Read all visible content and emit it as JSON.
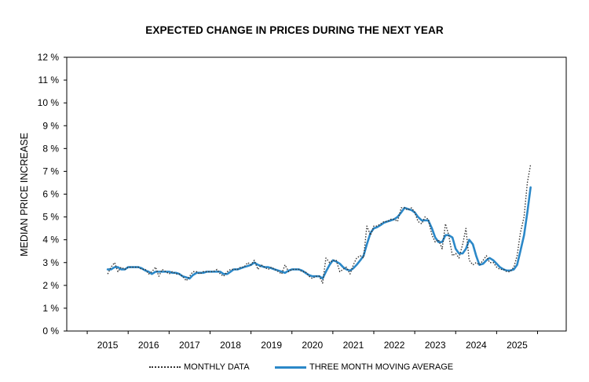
{
  "chart_data": {
    "type": "line",
    "title": "EXPECTED CHANGE IN PRICES DURING THE NEXT YEAR",
    "ylabel": "MEDIAN PRICE INCREASE",
    "xlabel": "",
    "ylim": [
      0,
      12
    ],
    "xlim": [
      2014.0,
      2026.2
    ],
    "y_ticks": [
      "0 %",
      "1 %",
      "2 %",
      "3 %",
      "4 %",
      "5 %",
      "6 %",
      "7 %",
      "8 %",
      "9 %",
      "10 %",
      "11 %",
      "12 %"
    ],
    "x_ticks": [
      "2015",
      "2016",
      "2017",
      "2018",
      "2019",
      "2020",
      "2021",
      "2022",
      "2023",
      "2024",
      "2025"
    ],
    "legend_position": "bottom",
    "grid": false,
    "series": [
      {
        "name": "MONTHLY DATA",
        "style": "dotted",
        "color": "#333333",
        "points": [
          [
            2015.0,
            2.5
          ],
          [
            2015.08,
            2.8
          ],
          [
            2015.17,
            3.0
          ],
          [
            2015.25,
            2.6
          ],
          [
            2015.33,
            2.8
          ],
          [
            2015.42,
            2.7
          ],
          [
            2015.5,
            2.8
          ],
          [
            2015.58,
            2.8
          ],
          [
            2015.67,
            2.8
          ],
          [
            2015.75,
            2.8
          ],
          [
            2015.83,
            2.7
          ],
          [
            2015.92,
            2.7
          ],
          [
            2016.0,
            2.5
          ],
          [
            2016.08,
            2.6
          ],
          [
            2016.17,
            2.8
          ],
          [
            2016.25,
            2.4
          ],
          [
            2016.33,
            2.7
          ],
          [
            2016.42,
            2.6
          ],
          [
            2016.5,
            2.5
          ],
          [
            2016.58,
            2.6
          ],
          [
            2016.67,
            2.5
          ],
          [
            2016.75,
            2.5
          ],
          [
            2016.83,
            2.4
          ],
          [
            2016.92,
            2.2
          ],
          [
            2017.0,
            2.4
          ],
          [
            2017.08,
            2.6
          ],
          [
            2017.17,
            2.6
          ],
          [
            2017.25,
            2.5
          ],
          [
            2017.33,
            2.6
          ],
          [
            2017.42,
            2.6
          ],
          [
            2017.5,
            2.6
          ],
          [
            2017.58,
            2.6
          ],
          [
            2017.67,
            2.7
          ],
          [
            2017.75,
            2.5
          ],
          [
            2017.83,
            2.4
          ],
          [
            2017.92,
            2.6
          ],
          [
            2018.0,
            2.7
          ],
          [
            2018.08,
            2.7
          ],
          [
            2018.17,
            2.7
          ],
          [
            2018.25,
            2.8
          ],
          [
            2018.33,
            2.8
          ],
          [
            2018.42,
            3.0
          ],
          [
            2018.5,
            2.9
          ],
          [
            2018.58,
            3.1
          ],
          [
            2018.67,
            2.7
          ],
          [
            2018.75,
            2.9
          ],
          [
            2018.83,
            2.8
          ],
          [
            2018.92,
            2.7
          ],
          [
            2019.0,
            2.8
          ],
          [
            2019.08,
            2.7
          ],
          [
            2019.17,
            2.6
          ],
          [
            2019.25,
            2.5
          ],
          [
            2019.33,
            2.9
          ],
          [
            2019.42,
            2.6
          ],
          [
            2019.5,
            2.7
          ],
          [
            2019.58,
            2.7
          ],
          [
            2019.67,
            2.7
          ],
          [
            2019.75,
            2.6
          ],
          [
            2019.83,
            2.6
          ],
          [
            2019.92,
            2.4
          ],
          [
            2020.0,
            2.3
          ],
          [
            2020.08,
            2.4
          ],
          [
            2020.17,
            2.4
          ],
          [
            2020.25,
            2.1
          ],
          [
            2020.33,
            3.2
          ],
          [
            2020.42,
            3.0
          ],
          [
            2020.5,
            3.1
          ],
          [
            2020.58,
            3.1
          ],
          [
            2020.67,
            2.6
          ],
          [
            2020.75,
            2.7
          ],
          [
            2020.83,
            2.8
          ],
          [
            2020.92,
            2.5
          ],
          [
            2021.0,
            2.9
          ],
          [
            2021.08,
            3.2
          ],
          [
            2021.17,
            3.3
          ],
          [
            2021.25,
            3.2
          ],
          [
            2021.33,
            4.6
          ],
          [
            2021.42,
            4.2
          ],
          [
            2021.5,
            4.6
          ],
          [
            2021.58,
            4.6
          ],
          [
            2021.67,
            4.7
          ],
          [
            2021.75,
            4.8
          ],
          [
            2021.83,
            4.8
          ],
          [
            2021.92,
            4.9
          ],
          [
            2022.0,
            4.9
          ],
          [
            2022.08,
            4.8
          ],
          [
            2022.17,
            5.4
          ],
          [
            2022.25,
            5.4
          ],
          [
            2022.33,
            5.3
          ],
          [
            2022.42,
            5.4
          ],
          [
            2022.5,
            5.2
          ],
          [
            2022.58,
            4.8
          ],
          [
            2022.67,
            4.7
          ],
          [
            2022.75,
            5.0
          ],
          [
            2022.83,
            4.9
          ],
          [
            2022.92,
            4.2
          ],
          [
            2023.0,
            3.9
          ],
          [
            2023.08,
            4.0
          ],
          [
            2023.17,
            3.6
          ],
          [
            2023.25,
            4.7
          ],
          [
            2023.33,
            4.2
          ],
          [
            2023.42,
            3.3
          ],
          [
            2023.5,
            3.4
          ],
          [
            2023.58,
            3.2
          ],
          [
            2023.67,
            3.8
          ],
          [
            2023.75,
            4.5
          ],
          [
            2023.83,
            3.1
          ],
          [
            2023.92,
            2.9
          ],
          [
            2024.0,
            3.0
          ],
          [
            2024.08,
            2.9
          ],
          [
            2024.17,
            3.1
          ],
          [
            2024.25,
            3.3
          ],
          [
            2024.33,
            3.0
          ],
          [
            2024.42,
            3.0
          ],
          [
            2024.5,
            2.8
          ],
          [
            2024.58,
            2.7
          ],
          [
            2024.67,
            2.7
          ],
          [
            2024.75,
            2.6
          ],
          [
            2024.83,
            2.6
          ],
          [
            2024.92,
            2.8
          ],
          [
            2025.0,
            3.3
          ],
          [
            2025.08,
            4.3
          ],
          [
            2025.17,
            5.0
          ],
          [
            2025.25,
            6.5
          ],
          [
            2025.33,
            7.3
          ]
        ]
      },
      {
        "name": "THREE MONTH MOVING AVERAGE",
        "style": "solid",
        "color": "#2b88c8",
        "points": [
          [
            2015.0,
            2.7
          ],
          [
            2015.08,
            2.7
          ],
          [
            2015.17,
            2.8
          ],
          [
            2015.25,
            2.8
          ],
          [
            2015.33,
            2.7
          ],
          [
            2015.42,
            2.7
          ],
          [
            2015.5,
            2.8
          ],
          [
            2015.58,
            2.8
          ],
          [
            2015.67,
            2.8
          ],
          [
            2015.75,
            2.8
          ],
          [
            2015.83,
            2.75
          ],
          [
            2015.92,
            2.65
          ],
          [
            2016.0,
            2.6
          ],
          [
            2016.08,
            2.5
          ],
          [
            2016.17,
            2.6
          ],
          [
            2016.25,
            2.6
          ],
          [
            2016.33,
            2.6
          ],
          [
            2016.42,
            2.6
          ],
          [
            2016.5,
            2.6
          ],
          [
            2016.58,
            2.55
          ],
          [
            2016.67,
            2.55
          ],
          [
            2016.75,
            2.5
          ],
          [
            2016.83,
            2.4
          ],
          [
            2016.92,
            2.35
          ],
          [
            2017.0,
            2.3
          ],
          [
            2017.08,
            2.45
          ],
          [
            2017.17,
            2.55
          ],
          [
            2017.25,
            2.55
          ],
          [
            2017.33,
            2.55
          ],
          [
            2017.42,
            2.6
          ],
          [
            2017.5,
            2.6
          ],
          [
            2017.58,
            2.6
          ],
          [
            2017.67,
            2.6
          ],
          [
            2017.75,
            2.6
          ],
          [
            2017.83,
            2.5
          ],
          [
            2017.92,
            2.5
          ],
          [
            2018.0,
            2.6
          ],
          [
            2018.08,
            2.7
          ],
          [
            2018.17,
            2.7
          ],
          [
            2018.25,
            2.75
          ],
          [
            2018.33,
            2.8
          ],
          [
            2018.42,
            2.85
          ],
          [
            2018.5,
            2.9
          ],
          [
            2018.58,
            3.0
          ],
          [
            2018.67,
            2.9
          ],
          [
            2018.75,
            2.85
          ],
          [
            2018.83,
            2.8
          ],
          [
            2018.92,
            2.8
          ],
          [
            2019.0,
            2.75
          ],
          [
            2019.08,
            2.7
          ],
          [
            2019.17,
            2.65
          ],
          [
            2019.25,
            2.6
          ],
          [
            2019.33,
            2.55
          ],
          [
            2019.42,
            2.65
          ],
          [
            2019.5,
            2.7
          ],
          [
            2019.58,
            2.7
          ],
          [
            2019.67,
            2.7
          ],
          [
            2019.75,
            2.65
          ],
          [
            2019.83,
            2.55
          ],
          [
            2019.92,
            2.45
          ],
          [
            2020.0,
            2.4
          ],
          [
            2020.08,
            2.4
          ],
          [
            2020.17,
            2.4
          ],
          [
            2020.25,
            2.3
          ],
          [
            2020.33,
            2.6
          ],
          [
            2020.42,
            2.9
          ],
          [
            2020.5,
            3.1
          ],
          [
            2020.58,
            3.05
          ],
          [
            2020.67,
            2.95
          ],
          [
            2020.75,
            2.8
          ],
          [
            2020.83,
            2.7
          ],
          [
            2020.92,
            2.65
          ],
          [
            2021.0,
            2.75
          ],
          [
            2021.08,
            2.9
          ],
          [
            2021.17,
            3.1
          ],
          [
            2021.25,
            3.3
          ],
          [
            2021.33,
            3.8
          ],
          [
            2021.42,
            4.3
          ],
          [
            2021.5,
            4.5
          ],
          [
            2021.58,
            4.55
          ],
          [
            2021.67,
            4.65
          ],
          [
            2021.75,
            4.75
          ],
          [
            2021.83,
            4.8
          ],
          [
            2021.92,
            4.85
          ],
          [
            2022.0,
            4.9
          ],
          [
            2022.08,
            5.0
          ],
          [
            2022.17,
            5.2
          ],
          [
            2022.25,
            5.4
          ],
          [
            2022.33,
            5.35
          ],
          [
            2022.42,
            5.3
          ],
          [
            2022.5,
            5.2
          ],
          [
            2022.58,
            5.0
          ],
          [
            2022.67,
            4.85
          ],
          [
            2022.75,
            4.85
          ],
          [
            2022.83,
            4.85
          ],
          [
            2022.92,
            4.5
          ],
          [
            2023.0,
            4.1
          ],
          [
            2023.08,
            3.9
          ],
          [
            2023.17,
            3.9
          ],
          [
            2023.25,
            4.2
          ],
          [
            2023.33,
            4.2
          ],
          [
            2023.42,
            4.1
          ],
          [
            2023.5,
            3.6
          ],
          [
            2023.58,
            3.4
          ],
          [
            2023.67,
            3.4
          ],
          [
            2023.75,
            3.6
          ],
          [
            2023.83,
            4.0
          ],
          [
            2023.92,
            3.8
          ],
          [
            2024.0,
            3.3
          ],
          [
            2024.08,
            2.9
          ],
          [
            2024.17,
            2.95
          ],
          [
            2024.25,
            3.1
          ],
          [
            2024.33,
            3.2
          ],
          [
            2024.42,
            3.1
          ],
          [
            2024.5,
            2.95
          ],
          [
            2024.58,
            2.8
          ],
          [
            2024.67,
            2.7
          ],
          [
            2024.75,
            2.65
          ],
          [
            2024.83,
            2.65
          ],
          [
            2024.92,
            2.7
          ],
          [
            2025.0,
            2.9
          ],
          [
            2025.08,
            3.5
          ],
          [
            2025.17,
            4.2
          ],
          [
            2025.25,
            5.2
          ],
          [
            2025.33,
            6.3
          ]
        ]
      }
    ]
  }
}
